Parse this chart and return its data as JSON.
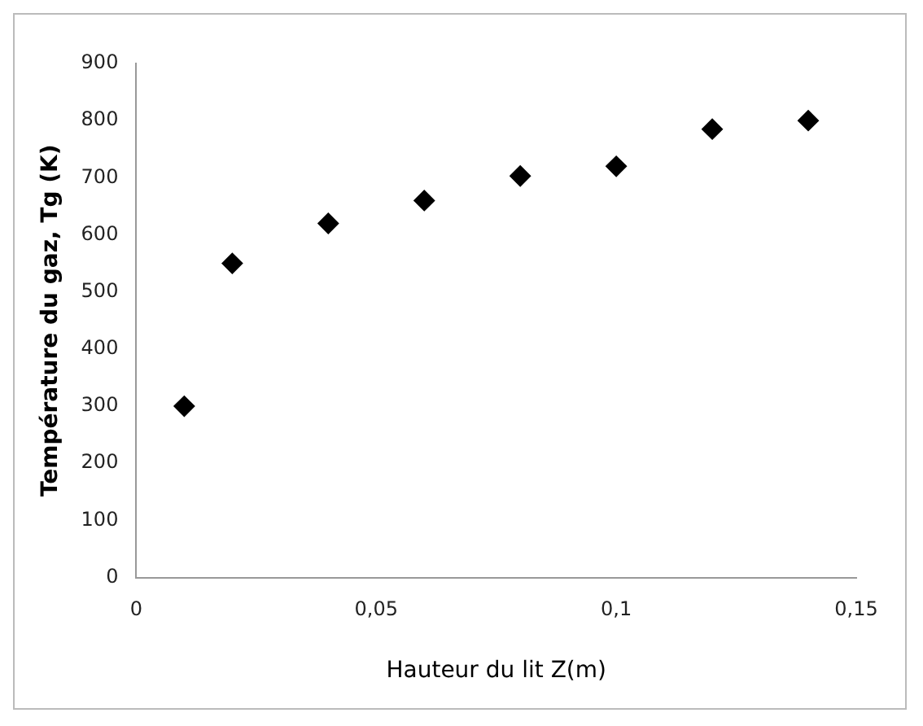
{
  "chart_data": {
    "type": "scatter",
    "xlabel": "Hauteur du lit Z(m)",
    "ylabel": "Température du gaz, Tg (K)",
    "x": [
      0.01,
      0.02,
      0.04,
      0.06,
      0.08,
      0.1,
      0.12,
      0.14
    ],
    "series": [
      {
        "color": "#000000",
        "values": [
          300,
          550,
          620,
          660,
          703,
          720,
          785,
          800
        ]
      }
    ],
    "xlim": [
      0,
      0.15
    ],
    "xticks": [
      0,
      {
        "value": 0.05,
        "label": "0,05"
      },
      {
        "value": 0.1,
        "label": "0,1"
      },
      {
        "value": 0.15,
        "label": "0,15"
      }
    ],
    "ylim": [
      0,
      900
    ],
    "yticks": [
      0,
      100,
      200,
      300,
      400,
      500,
      600,
      700,
      800,
      900
    ],
    "grid": false,
    "legend": false,
    "marker": "diamond"
  }
}
